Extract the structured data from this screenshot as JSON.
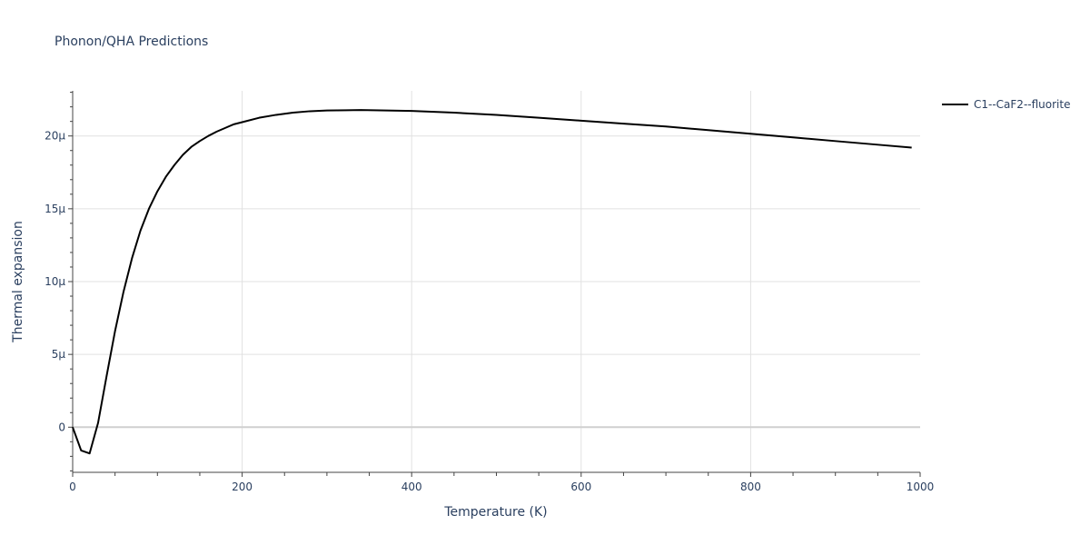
{
  "chart_data": {
    "type": "line",
    "title": "Phonon/QHA Predictions",
    "xlabel": "Temperature (K)",
    "ylabel": "Thermal expansion",
    "xlim": [
      0,
      1000
    ],
    "ylim": [
      -3.1,
      23.1
    ],
    "x_ticks": [
      0,
      200,
      400,
      600,
      800,
      1000
    ],
    "x_tick_labels": [
      "0",
      "200",
      "400",
      "600",
      "800",
      "1000"
    ],
    "y_ticks": [
      0,
      5,
      10,
      15,
      20
    ],
    "y_tick_labels": [
      "0",
      "5μ",
      "10μ",
      "15μ",
      "20μ"
    ],
    "y_unit_note": "values in units of 1e-6 per K (μ)",
    "grid": true,
    "legend_position": "top-right",
    "series": [
      {
        "name": "C1--CaF2--fluorite",
        "color": "#000000",
        "x": [
          0,
          10,
          20,
          30,
          40,
          50,
          60,
          70,
          80,
          90,
          100,
          110,
          120,
          130,
          140,
          150,
          160,
          170,
          180,
          190,
          200,
          220,
          240,
          260,
          280,
          300,
          340,
          400,
          450,
          500,
          550,
          600,
          650,
          700,
          750,
          800,
          850,
          900,
          950,
          990
        ],
        "y": [
          0.0,
          -1.6,
          -1.8,
          0.3,
          3.5,
          6.6,
          9.3,
          11.6,
          13.5,
          15.0,
          16.2,
          17.2,
          18.0,
          18.7,
          19.25,
          19.65,
          20.0,
          20.3,
          20.55,
          20.8,
          20.95,
          21.25,
          21.45,
          21.6,
          21.7,
          21.75,
          21.78,
          21.72,
          21.6,
          21.45,
          21.25,
          21.05,
          20.85,
          20.65,
          20.4,
          20.15,
          19.9,
          19.65,
          19.4,
          19.2
        ]
      }
    ]
  }
}
